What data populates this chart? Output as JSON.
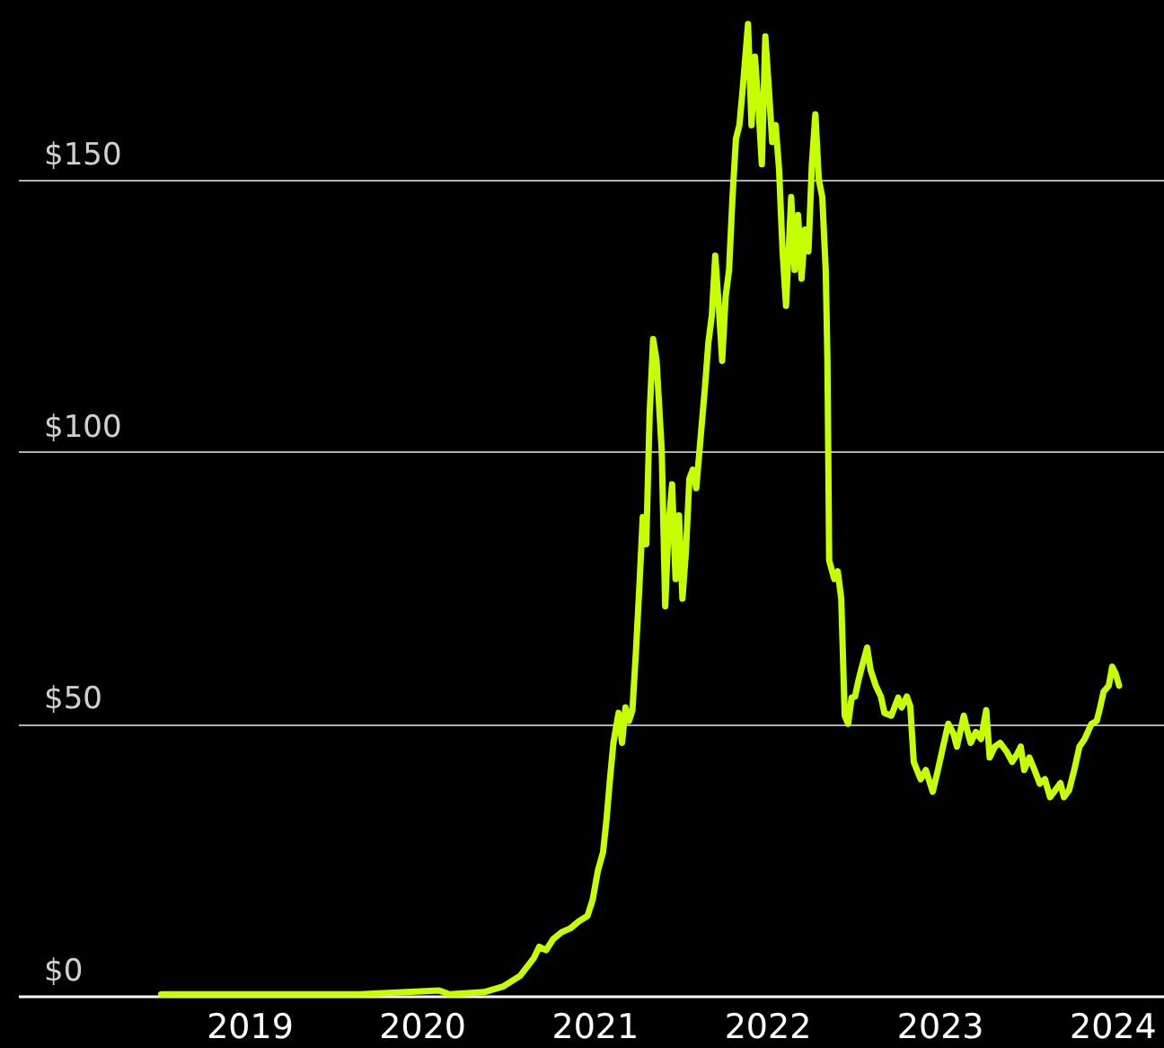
{
  "chart_data": {
    "type": "line",
    "color": "#c6ff00",
    "x": [
      2018.49,
      2019.01,
      2019.64,
      2020.1,
      2020.16,
      2020.36,
      2020.47,
      2020.57,
      2020.65,
      2020.68,
      2020.72,
      2020.76,
      2020.81,
      2020.86,
      2020.91,
      2020.96,
      2020.99,
      2021.02,
      2021.05,
      2021.07,
      2021.09,
      2021.11,
      2021.14,
      2021.16,
      2021.18,
      2021.2,
      2021.22,
      2021.24,
      2021.26,
      2021.28,
      2021.3,
      2021.32,
      2021.34,
      2021.36,
      2021.39,
      2021.41,
      2021.43,
      2021.45,
      2021.47,
      2021.49,
      2021.51,
      2021.53,
      2021.55,
      2021.57,
      2021.59,
      2021.61,
      2021.64,
      2021.66,
      2021.68,
      2021.7,
      2021.72,
      2021.74,
      2021.76,
      2021.78,
      2021.8,
      2021.82,
      2021.84,
      2021.86,
      2021.89,
      2021.91,
      2021.93,
      2021.95,
      2021.97,
      2021.99,
      2022.01,
      2022.03,
      2022.05,
      2022.07,
      2022.09,
      2022.11,
      2022.14,
      2022.16,
      2022.18,
      2022.2,
      2022.22,
      2022.24,
      2022.26,
      2022.28,
      2022.3,
      2022.32,
      2022.34,
      2022.35,
      2022.36,
      2022.39,
      2022.41,
      2022.43,
      2022.45,
      2022.47,
      2022.49,
      2022.51,
      2022.53,
      2022.55,
      2022.58,
      2022.6,
      2022.63,
      2022.66,
      2022.68,
      2022.72,
      2022.76,
      2022.78,
      2022.81,
      2022.83,
      2022.85,
      2022.89,
      2022.92,
      2022.96,
      2022.99,
      2023.02,
      2023.05,
      2023.08,
      2023.1,
      2023.14,
      2023.16,
      2023.18,
      2023.21,
      2023.24,
      2023.27,
      2023.29,
      2023.32,
      2023.35,
      2023.39,
      2023.42,
      2023.45,
      2023.47,
      2023.49,
      2023.52,
      2023.55,
      2023.58,
      2023.61,
      2023.64,
      2023.67,
      2023.7,
      2023.72,
      2023.75,
      2023.78,
      2023.81,
      2023.84,
      2023.88,
      2023.91,
      2023.93,
      2023.95,
      2023.98,
      2024.0,
      2024.02,
      2024.04
    ],
    "values": [
      0.3,
      0.3,
      0.3,
      1,
      0.3,
      0.7,
      1.7,
      3.7,
      7,
      9,
      8.4,
      10.4,
      11.7,
      12.4,
      13.7,
      14.7,
      17.7,
      23,
      26.4,
      32.4,
      39.8,
      46.5,
      52,
      46.5,
      53,
      50.5,
      52.5,
      63,
      75,
      88,
      83,
      107,
      120.7,
      116.7,
      100,
      71.6,
      86.6,
      94,
      76.6,
      88.3,
      73,
      81.6,
      95,
      96.7,
      93.3,
      100.7,
      111.7,
      120,
      125,
      136,
      126.8,
      116.7,
      128.4,
      133.4,
      146.8,
      157.5,
      160,
      167,
      178.6,
      160,
      172.6,
      163.5,
      152.8,
      176.3,
      167,
      156.9,
      160,
      151.8,
      136.8,
      126.8,
      146.8,
      133.4,
      143.5,
      131.8,
      140.8,
      136.8,
      153,
      162,
      150,
      146.8,
      133.4,
      116.7,
      80,
      76.6,
      78,
      73,
      51.5,
      50,
      54.8,
      55,
      58,
      60.5,
      64,
      59.9,
      57,
      55,
      52,
      51.5,
      54.8,
      53,
      55,
      53.2,
      43,
      39.8,
      41.5,
      37.5,
      41.5,
      45.8,
      50,
      48.2,
      45.8,
      51.5,
      48.8,
      46.5,
      48.5,
      47.2,
      52.5,
      43.8,
      45.8,
      46.5,
      44.8,
      43,
      44.5,
      45.8,
      41.5,
      43.8,
      41.5,
      39,
      39.8,
      36.5,
      37.8,
      39.1,
      36.5,
      37.8,
      41.5,
      45.8,
      47.2,
      50,
      50.5,
      53,
      55.9,
      57,
      60.5,
      59.2,
      57
    ],
    "xlim": [
      2017.66,
      2024.3
    ],
    "xticks": [
      2019,
      2020,
      2021,
      2022,
      2023,
      2024
    ],
    "ylim": [
      0,
      183
    ],
    "yticks": [
      {
        "value": 0,
        "label": "$0"
      },
      {
        "value": 50,
        "label": "$50"
      },
      {
        "value": 100,
        "label": "$100"
      },
      {
        "value": 150,
        "label": "$150"
      }
    ],
    "grid": "y"
  }
}
